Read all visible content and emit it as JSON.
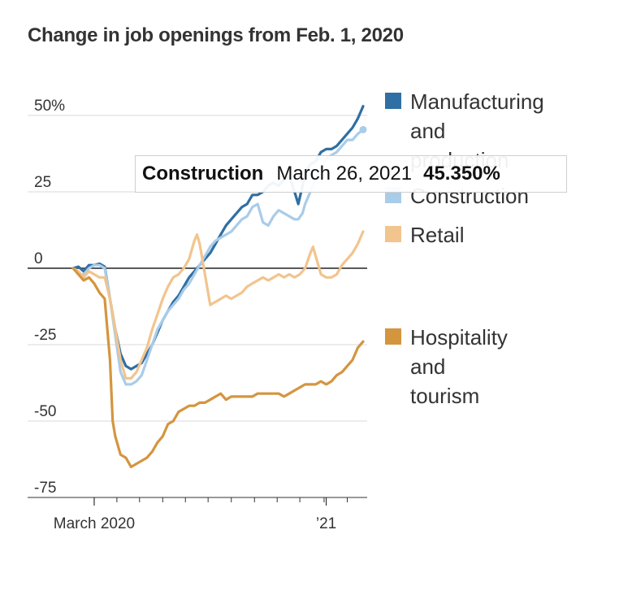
{
  "chart_data": {
    "type": "line",
    "title": "Change in job openings from Feb. 1, 2020",
    "xlabel": "",
    "ylabel": "",
    "ylim": [
      -75,
      50
    ],
    "yticks": [
      {
        "value": 50,
        "label": "50%"
      },
      {
        "value": 25,
        "label": "25"
      },
      {
        "value": 0,
        "label": "0"
      },
      {
        "value": -25,
        "label": "-25"
      },
      {
        "value": -50,
        "label": "-50"
      },
      {
        "value": -75,
        "label": "-75"
      }
    ],
    "xrange_weeks": [
      0,
      57
    ],
    "xtick_labels": [
      {
        "week": 4,
        "label": "March 2020"
      },
      {
        "week": 48,
        "label": "’21"
      }
    ],
    "series": [
      {
        "name": "Manufacturing and production",
        "color": "#2f6fa3",
        "points": [
          [
            0,
            0
          ],
          [
            1,
            0.5
          ],
          [
            2,
            -1
          ],
          [
            3,
            1
          ],
          [
            4,
            1
          ],
          [
            5,
            1.5
          ],
          [
            6,
            0.5
          ],
          [
            7,
            -10
          ],
          [
            8,
            -20
          ],
          [
            9,
            -28
          ],
          [
            10,
            -32
          ],
          [
            11,
            -33
          ],
          [
            12,
            -32
          ],
          [
            13,
            -31
          ],
          [
            14,
            -28
          ],
          [
            15,
            -25
          ],
          [
            16,
            -21
          ],
          [
            17,
            -17
          ],
          [
            18,
            -14
          ],
          [
            19,
            -11
          ],
          [
            20,
            -9
          ],
          [
            21,
            -6
          ],
          [
            22,
            -3
          ],
          [
            23,
            -1
          ],
          [
            24,
            1
          ],
          [
            25,
            3
          ],
          [
            26,
            5
          ],
          [
            27,
            8
          ],
          [
            28,
            11
          ],
          [
            29,
            14
          ],
          [
            30,
            16
          ],
          [
            31,
            18
          ],
          [
            32,
            20
          ],
          [
            33,
            21
          ],
          [
            34,
            24
          ],
          [
            35,
            24
          ],
          [
            36,
            25
          ],
          [
            37,
            27
          ],
          [
            38,
            28
          ],
          [
            39,
            27
          ],
          [
            40,
            29
          ],
          [
            41,
            30
          ],
          [
            42,
            25
          ],
          [
            42.7,
            21
          ],
          [
            43.5,
            27
          ],
          [
            44,
            31
          ],
          [
            45,
            34
          ],
          [
            46,
            35
          ],
          [
            47,
            38
          ],
          [
            48,
            39
          ],
          [
            49,
            39
          ],
          [
            50,
            40
          ],
          [
            51,
            42
          ],
          [
            52,
            44
          ],
          [
            53,
            46
          ],
          [
            54,
            49
          ],
          [
            55,
            53
          ]
        ]
      },
      {
        "name": "Construction",
        "color": "#a9cce9",
        "points": [
          [
            0,
            0
          ],
          [
            1,
            -2
          ],
          [
            2,
            -2
          ],
          [
            3,
            0
          ],
          [
            4,
            1
          ],
          [
            5,
            1
          ],
          [
            6,
            0
          ],
          [
            7,
            -10
          ],
          [
            8,
            -22
          ],
          [
            9,
            -34
          ],
          [
            10,
            -38
          ],
          [
            11,
            -38
          ],
          [
            12,
            -37
          ],
          [
            13,
            -35
          ],
          [
            14,
            -30
          ],
          [
            15,
            -25
          ],
          [
            16,
            -20
          ],
          [
            17,
            -17
          ],
          [
            18,
            -14
          ],
          [
            19,
            -12
          ],
          [
            20,
            -10
          ],
          [
            21,
            -7
          ],
          [
            22,
            -5
          ],
          [
            23,
            -2
          ],
          [
            24,
            1
          ],
          [
            25,
            4
          ],
          [
            26,
            7
          ],
          [
            27,
            9
          ],
          [
            28,
            10
          ],
          [
            29,
            11
          ],
          [
            30,
            12
          ],
          [
            31,
            14
          ],
          [
            32,
            16
          ],
          [
            33,
            17
          ],
          [
            34,
            20
          ],
          [
            35,
            21
          ],
          [
            36,
            15
          ],
          [
            37,
            14
          ],
          [
            38,
            17
          ],
          [
            39,
            19
          ],
          [
            40,
            18
          ],
          [
            41,
            17
          ],
          [
            42,
            16
          ],
          [
            42.7,
            16
          ],
          [
            43.5,
            18
          ],
          [
            44,
            21
          ],
          [
            45,
            25
          ],
          [
            46,
            29
          ],
          [
            47,
            32
          ],
          [
            48,
            36
          ],
          [
            49,
            37
          ],
          [
            50,
            38
          ],
          [
            51,
            40
          ],
          [
            52,
            42
          ],
          [
            53,
            42
          ],
          [
            54,
            44
          ],
          [
            55,
            45.35
          ]
        ]
      },
      {
        "name": "Retail",
        "color": "#f2c48e",
        "points": [
          [
            0,
            0
          ],
          [
            1,
            -1
          ],
          [
            2,
            -3
          ],
          [
            3,
            -1
          ],
          [
            4,
            -2
          ],
          [
            5,
            -3
          ],
          [
            6,
            -3
          ],
          [
            7,
            -10
          ],
          [
            8,
            -20
          ],
          [
            9,
            -30
          ],
          [
            10,
            -36
          ],
          [
            11,
            -36
          ],
          [
            12,
            -34
          ],
          [
            13,
            -30
          ],
          [
            14,
            -26
          ],
          [
            15,
            -20
          ],
          [
            16,
            -15
          ],
          [
            17,
            -10
          ],
          [
            18,
            -6
          ],
          [
            19,
            -3
          ],
          [
            20,
            -2
          ],
          [
            21,
            0
          ],
          [
            22,
            3
          ],
          [
            23,
            9
          ],
          [
            23.5,
            11
          ],
          [
            24,
            8
          ],
          [
            25,
            -2
          ],
          [
            26,
            -12
          ],
          [
            27,
            -11
          ],
          [
            28,
            -10
          ],
          [
            29,
            -9
          ],
          [
            30,
            -10
          ],
          [
            31,
            -9
          ],
          [
            32,
            -8
          ],
          [
            33,
            -6
          ],
          [
            34,
            -5
          ],
          [
            35,
            -4
          ],
          [
            36,
            -3
          ],
          [
            37,
            -4
          ],
          [
            38,
            -3
          ],
          [
            39,
            -2
          ],
          [
            40,
            -3
          ],
          [
            41,
            -2
          ],
          [
            42,
            -3
          ],
          [
            43,
            -2
          ],
          [
            44,
            0
          ],
          [
            45,
            5
          ],
          [
            45.5,
            7
          ],
          [
            46,
            4
          ],
          [
            47,
            -2
          ],
          [
            48,
            -3
          ],
          [
            49,
            -3
          ],
          [
            50,
            -2
          ],
          [
            51,
            1
          ],
          [
            52,
            3
          ],
          [
            53,
            5
          ],
          [
            54,
            8
          ],
          [
            55,
            12
          ]
        ]
      },
      {
        "name": "Hospitality and tourism",
        "color": "#d4953f",
        "points": [
          [
            0,
            0
          ],
          [
            1,
            -2
          ],
          [
            2,
            -4
          ],
          [
            3,
            -3
          ],
          [
            4,
            -5
          ],
          [
            5,
            -8
          ],
          [
            6,
            -10
          ],
          [
            7,
            -30
          ],
          [
            7.5,
            -50
          ],
          [
            8,
            -55
          ],
          [
            9,
            -61
          ],
          [
            10,
            -62
          ],
          [
            11,
            -65
          ],
          [
            12,
            -64
          ],
          [
            13,
            -63
          ],
          [
            14,
            -62
          ],
          [
            15,
            -60
          ],
          [
            16,
            -57
          ],
          [
            17,
            -55
          ],
          [
            18,
            -51
          ],
          [
            19,
            -50
          ],
          [
            20,
            -47
          ],
          [
            21,
            -46
          ],
          [
            22,
            -45
          ],
          [
            23,
            -45
          ],
          [
            24,
            -44
          ],
          [
            25,
            -44
          ],
          [
            26,
            -43
          ],
          [
            27,
            -42
          ],
          [
            28,
            -41
          ],
          [
            29,
            -43
          ],
          [
            30,
            -42
          ],
          [
            31,
            -42
          ],
          [
            32,
            -42
          ],
          [
            33,
            -42
          ],
          [
            34,
            -42
          ],
          [
            35,
            -41
          ],
          [
            36,
            -41
          ],
          [
            37,
            -41
          ],
          [
            38,
            -41
          ],
          [
            39,
            -41
          ],
          [
            40,
            -42
          ],
          [
            41,
            -41
          ],
          [
            42,
            -40
          ],
          [
            43,
            -39
          ],
          [
            44,
            -38
          ],
          [
            45,
            -38
          ],
          [
            46,
            -38
          ],
          [
            47,
            -37
          ],
          [
            48,
            -38
          ],
          [
            49,
            -37
          ],
          [
            50,
            -35
          ],
          [
            51,
            -34
          ],
          [
            52,
            -32
          ],
          [
            53,
            -30
          ],
          [
            54,
            -26
          ],
          [
            55,
            -24
          ]
        ]
      }
    ]
  },
  "legend": [
    {
      "label": "Manufacturing",
      "color": "#2f6fa3"
    },
    {
      "label": "and",
      "color": ""
    },
    {
      "label": "production",
      "color": ""
    },
    {
      "label": "Construction",
      "color": "#a9cce9"
    },
    {
      "label": "Retail",
      "color": "#f2c48e"
    },
    {
      "label": "Hospitality",
      "color": "#d4953f"
    },
    {
      "label": "and",
      "color": ""
    },
    {
      "label": "tourism",
      "color": ""
    }
  ],
  "tooltip": {
    "series": "Construction",
    "date": "March 26, 2021",
    "value": "45.350%"
  }
}
